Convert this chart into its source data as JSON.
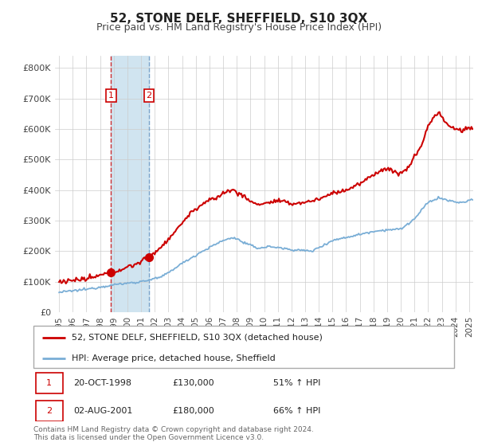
{
  "title": "52, STONE DELF, SHEFFIELD, S10 3QX",
  "subtitle": "Price paid vs. HM Land Registry's House Price Index (HPI)",
  "ylabel_ticks": [
    "£0",
    "£100K",
    "£200K",
    "£300K",
    "£400K",
    "£500K",
    "£600K",
    "£700K",
    "£800K"
  ],
  "ytick_vals": [
    0,
    100000,
    200000,
    300000,
    400000,
    500000,
    600000,
    700000,
    800000
  ],
  "ylim": [
    0,
    840000
  ],
  "xlim_start": 1994.7,
  "xlim_end": 2025.3,
  "sale1_x": 1998.8,
  "sale1_y": 130000,
  "sale2_x": 2001.58,
  "sale2_y": 180000,
  "legend_line1": "52, STONE DELF, SHEFFIELD, S10 3QX (detached house)",
  "legend_line2": "HPI: Average price, detached house, Sheffield",
  "table_row1": [
    "1",
    "20-OCT-1998",
    "£130,000",
    "51% ↑ HPI"
  ],
  "table_row2": [
    "2",
    "02-AUG-2001",
    "£180,000",
    "66% ↑ HPI"
  ],
  "footer": "Contains HM Land Registry data © Crown copyright and database right 2024.\nThis data is licensed under the Open Government Licence v3.0.",
  "red_color": "#cc0000",
  "blue_color": "#7aaed6",
  "shade_color": "#d0e4f0",
  "grid_color": "#cccccc",
  "background_color": "#ffffff",
  "label_color": "#444444"
}
